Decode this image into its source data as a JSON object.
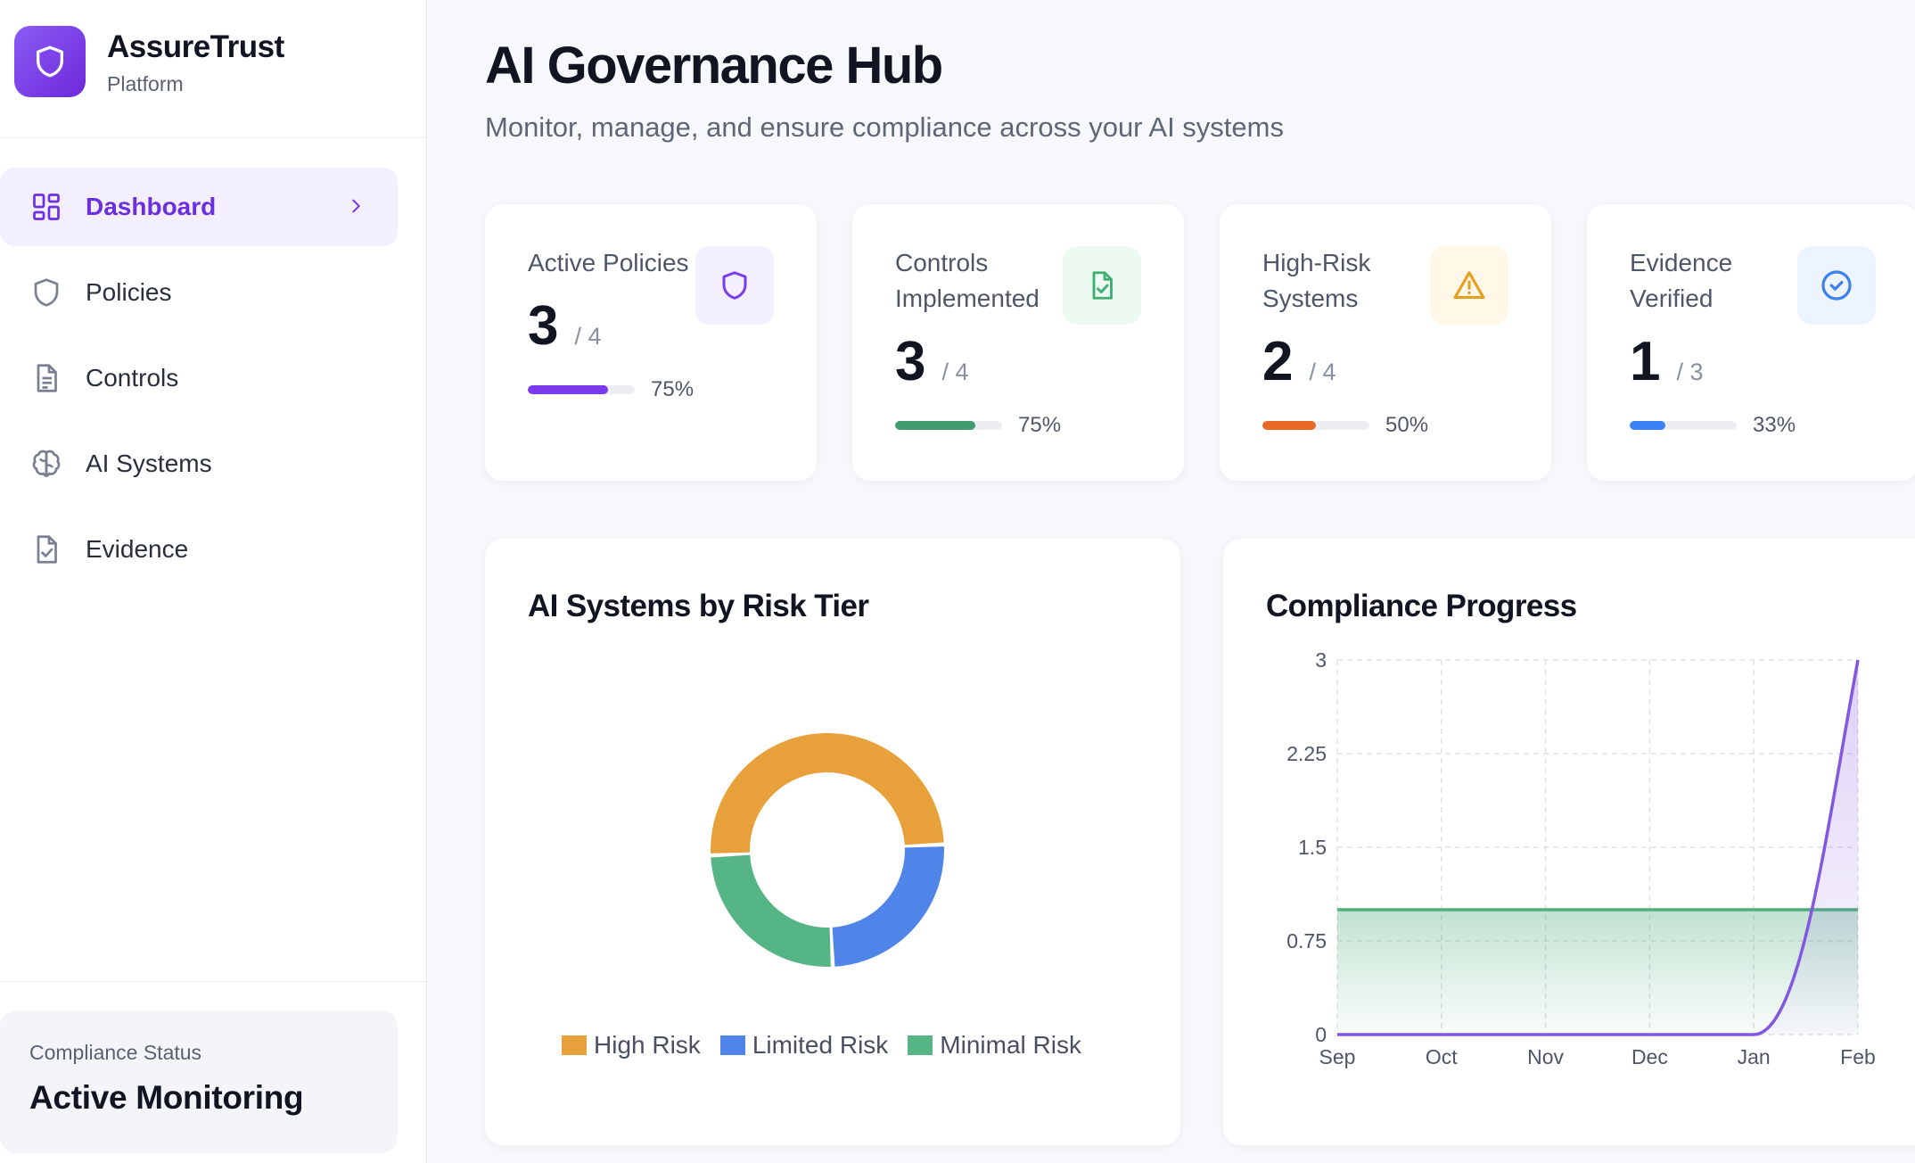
{
  "brand": {
    "name": "AssureTrust",
    "subtitle": "Platform"
  },
  "nav": [
    {
      "label": "Dashboard",
      "icon": "dashboard-grid-icon",
      "active": true
    },
    {
      "label": "Policies",
      "icon": "shield-icon",
      "active": false
    },
    {
      "label": "Controls",
      "icon": "document-icon",
      "active": false
    },
    {
      "label": "AI Systems",
      "icon": "brain-icon",
      "active": false
    },
    {
      "label": "Evidence",
      "icon": "file-check-icon",
      "active": false
    }
  ],
  "status": {
    "label": "Compliance Status",
    "value": "Active Monitoring"
  },
  "page": {
    "title": "AI Governance Hub",
    "subtitle": "Monitor, manage, and ensure compliance across your AI systems"
  },
  "stats": [
    {
      "label": "Active Policies",
      "value": "3",
      "total": "/ 4",
      "percent": "75%",
      "fraction": 0.75,
      "color": "#7c3aed",
      "icon": "shield-icon",
      "icon_bg": "#f3efff"
    },
    {
      "label": "Controls Implemented",
      "value": "3",
      "total": "/ 4",
      "percent": "75%",
      "fraction": 0.75,
      "color": "#3f9d6f",
      "icon": "file-check-icon",
      "icon_bg": "#ecfaf2"
    },
    {
      "label": "High-Risk Systems",
      "value": "2",
      "total": "/ 4",
      "percent": "50%",
      "fraction": 0.5,
      "color": "#e96a24",
      "icon": "warning-icon",
      "icon_bg": "#fff8e8"
    },
    {
      "label": "Evidence Verified",
      "value": "1",
      "total": "/ 3",
      "percent": "33%",
      "fraction": 0.33,
      "color": "#3b82f6",
      "icon": "check-circle-icon",
      "icon_bg": "#eef4ff"
    }
  ],
  "chart_data": [
    {
      "type": "pie",
      "title": "AI Systems by Risk Tier",
      "donut": true,
      "categories": [
        "High Risk",
        "Limited Risk",
        "Minimal Risk"
      ],
      "values": [
        2,
        1,
        1
      ],
      "colors": [
        "#e8a03b",
        "#4f84e8",
        "#55b584"
      ],
      "legend": "bottom"
    },
    {
      "type": "area",
      "title": "Compliance Progress",
      "categories": [
        "Sep",
        "Oct",
        "Nov",
        "Dec",
        "Jan",
        "Feb"
      ],
      "ylim": [
        0,
        3
      ],
      "yticks": [
        "0",
        "0.75",
        "1.5",
        "2.25",
        "3"
      ],
      "grid": true,
      "series": [
        {
          "values": [
            1,
            1,
            1,
            1,
            1,
            1
          ],
          "color": "#4fae7a"
        },
        {
          "values": [
            0,
            0,
            0,
            0,
            0,
            3
          ],
          "color": "#8357e0"
        }
      ]
    }
  ]
}
